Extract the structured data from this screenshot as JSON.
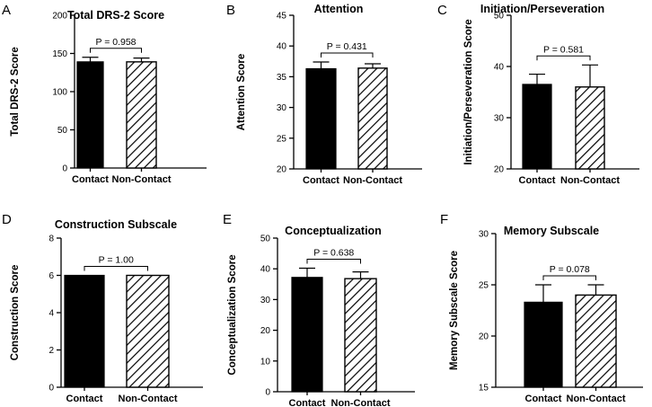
{
  "chart_data": [
    {
      "type": "bar",
      "panel": "A",
      "title": "Total DRS-2 Score",
      "xlabel": "",
      "ylabel": "Total DRS-2 Score",
      "categories": [
        "Contact",
        "Non-Contact"
      ],
      "values": [
        139,
        139
      ],
      "errors": [
        6,
        5
      ],
      "ylim": [
        0,
        200
      ],
      "yticks": [
        0,
        50,
        100,
        150,
        200
      ],
      "p_value": "P = 0.958"
    },
    {
      "type": "bar",
      "panel": "B",
      "title": "Attention",
      "xlabel": "",
      "ylabel": "Attention Score",
      "categories": [
        "Contact",
        "Non-Contact"
      ],
      "values": [
        36.3,
        36.4
      ],
      "errors": [
        1.1,
        0.7
      ],
      "ylim": [
        20,
        45
      ],
      "yticks": [
        20,
        25,
        30,
        35,
        40,
        45
      ],
      "p_value": "P = 0.431"
    },
    {
      "type": "bar",
      "panel": "C",
      "title": "Initiation/Perseveration",
      "xlabel": "",
      "ylabel": "Initiation/Perseveration Score",
      "categories": [
        "Contact",
        "Non-Contact"
      ],
      "values": [
        36.5,
        36.0
      ],
      "errors": [
        2.0,
        4.3
      ],
      "ylim": [
        20,
        50
      ],
      "yticks": [
        20,
        30,
        40,
        50
      ],
      "p_value": "P = 0.581"
    },
    {
      "type": "bar",
      "panel": "D",
      "title": "Construction Subscale",
      "xlabel": "",
      "ylabel": "Construction Score",
      "categories": [
        "Contact",
        "Non-Contact"
      ],
      "values": [
        6,
        6
      ],
      "errors": [
        0,
        0
      ],
      "ylim": [
        0,
        8
      ],
      "yticks": [
        0,
        2,
        4,
        6,
        8
      ],
      "p_value": "P = 1.00"
    },
    {
      "type": "bar",
      "panel": "E",
      "title": "Conceptualization",
      "xlabel": "",
      "ylabel": "Conceptualization Score",
      "categories": [
        "Contact",
        "Non-Contact"
      ],
      "values": [
        37.2,
        36.8
      ],
      "errors": [
        3.0,
        2.2
      ],
      "ylim": [
        0,
        50
      ],
      "yticks": [
        0,
        10,
        20,
        30,
        40,
        50
      ],
      "p_value": "P = 0.638"
    },
    {
      "type": "bar",
      "panel": "F",
      "title": "Memory Subscale",
      "xlabel": "",
      "ylabel": "Memory Subscale Score",
      "categories": [
        "Contact",
        "Non-Contact"
      ],
      "values": [
        23.3,
        24.0
      ],
      "errors": [
        1.7,
        1.0
      ],
      "ylim": [
        15,
        30
      ],
      "yticks": [
        15,
        20,
        25,
        30
      ],
      "p_value": "P = 0.078"
    }
  ]
}
